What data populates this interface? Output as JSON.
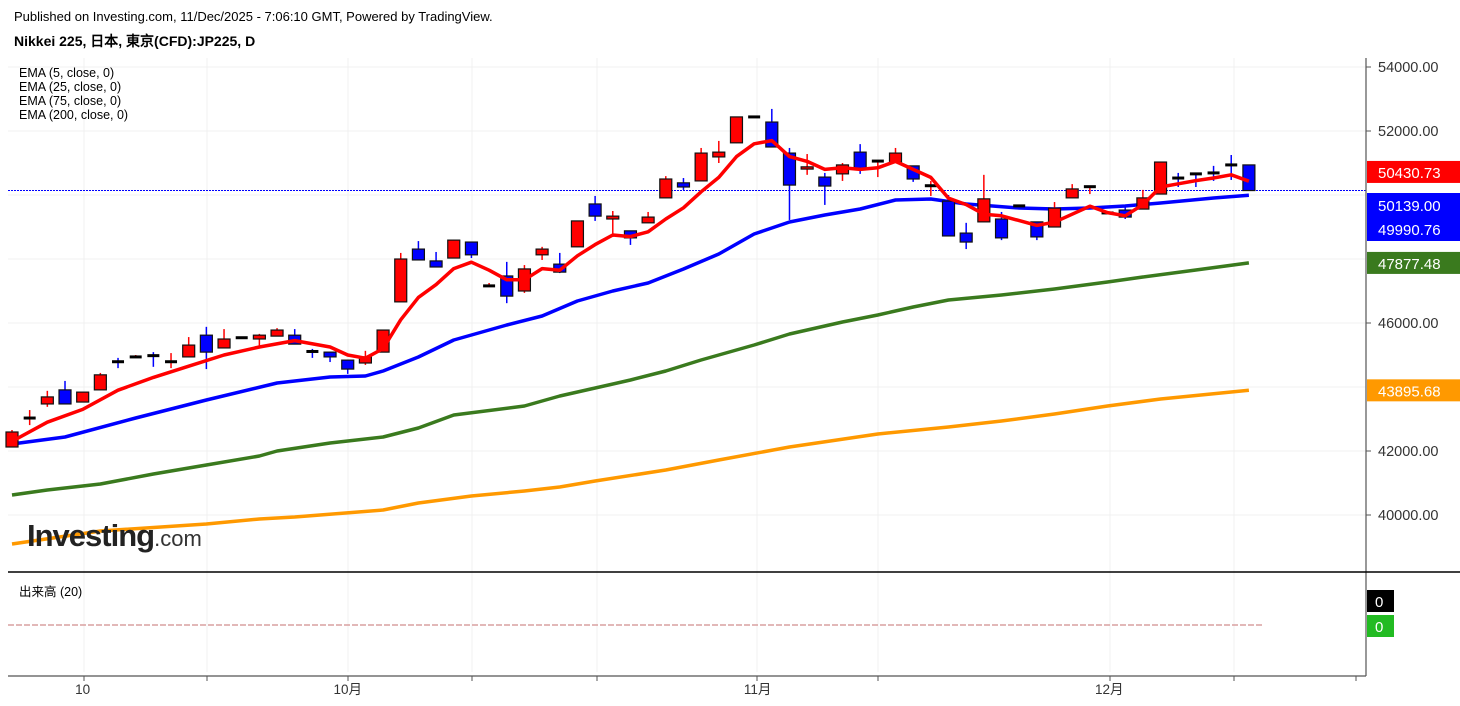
{
  "header": {
    "published": "Published on Investing.com, 11/Dec/2025 - 7:06:10 GMT, Powered by TradingView.",
    "symbol": "Nikkei 225, 日本, 東京(CFD):JP225, D"
  },
  "watermark": {
    "brand": "Investing",
    "suffix": ".com"
  },
  "volume_pane": {
    "label": "出来高 (20)",
    "values": [
      "0",
      "0"
    ],
    "colors": [
      "#000000",
      "#22bb22"
    ]
  },
  "chart_data": {
    "type": "candlestick",
    "title": "Nikkei 225, 日本, 東京(CFD):JP225, D",
    "ylim": [
      38200,
      54400
    ],
    "yticks": [
      54000,
      52000,
      46000,
      42000,
      40000
    ],
    "ytick_labels": [
      "54000.00",
      "52000.00",
      "46000.00",
      "42000.00",
      "40000.00"
    ],
    "xtick_labels": [
      {
        "label": "10",
        "index": 4
      },
      {
        "label": "10月",
        "index": 19
      },
      {
        "label": "11月",
        "index": 42.2
      },
      {
        "label": "12月",
        "index": 62.1
      }
    ],
    "grid": true,
    "colors": {
      "up": "#ff0000",
      "down": "#0000ff"
    },
    "last_price": {
      "value": 50139.0,
      "label": "50139.00",
      "color": "#0000ff"
    },
    "candles": [
      [
        42125,
        42656,
        42125,
        42594
      ],
      [
        43000,
        43280,
        42810,
        43030
      ],
      [
        43470,
        43880,
        43380,
        43690
      ],
      [
        43910,
        44190,
        43470,
        43470
      ],
      [
        43530,
        43850,
        43530,
        43840
      ],
      [
        43910,
        44440,
        43900,
        44380
      ],
      [
        44790,
        44910,
        44590,
        44770
      ],
      [
        44930,
        45000,
        44920,
        44940
      ],
      [
        44980,
        45090,
        44630,
        44960
      ],
      [
        44780,
        45060,
        44590,
        44790
      ],
      [
        44940,
        45560,
        44930,
        45310
      ],
      [
        45620,
        45880,
        44560,
        45090
      ],
      [
        45220,
        45810,
        45210,
        45500
      ],
      [
        45530,
        45560,
        45500,
        45540
      ],
      [
        45500,
        45660,
        45250,
        45620
      ],
      [
        45590,
        45840,
        45590,
        45780
      ],
      [
        45620,
        45810,
        45340,
        45340
      ],
      [
        45110,
        45190,
        44910,
        45090
      ],
      [
        45090,
        45100,
        44780,
        44940
      ],
      [
        44840,
        44850,
        44410,
        44560
      ],
      [
        44750,
        45130,
        44690,
        44940
      ],
      [
        45090,
        45780,
        45090,
        45780
      ],
      [
        46660,
        48190,
        46650,
        48000
      ],
      [
        48310,
        48560,
        47970,
        47970
      ],
      [
        47940,
        48220,
        47750,
        47750
      ],
      [
        48030,
        48600,
        48030,
        48590
      ],
      [
        48530,
        48540,
        48030,
        48130
      ],
      [
        47150,
        47250,
        47140,
        47160
      ],
      [
        47470,
        47910,
        46620,
        46840
      ],
      [
        47000,
        47810,
        46940,
        47690
      ],
      [
        48130,
        48380,
        47970,
        48310
      ],
      [
        47840,
        48190,
        47560,
        47590
      ],
      [
        48380,
        49190,
        48370,
        49190
      ],
      [
        49720,
        49970,
        49190,
        49340
      ],
      [
        49250,
        49500,
        48690,
        49340
      ],
      [
        48880,
        48890,
        48440,
        48660
      ],
      [
        49130,
        49470,
        49120,
        49310
      ],
      [
        49910,
        50590,
        49900,
        50500
      ],
      [
        50380,
        50530,
        50160,
        50250
      ],
      [
        50440,
        51470,
        50430,
        51310
      ],
      [
        51190,
        51690,
        51000,
        51340
      ],
      [
        51630,
        52440,
        51620,
        52440
      ],
      [
        52440,
        52450,
        52430,
        52440
      ],
      [
        52280,
        52690,
        51500,
        51500
      ],
      [
        51310,
        51470,
        49220,
        50310
      ],
      [
        50810,
        51280,
        50630,
        50880
      ],
      [
        50560,
        50690,
        49690,
        50280
      ],
      [
        50660,
        51000,
        50440,
        50940
      ],
      [
        51340,
        51590,
        50660,
        50840
      ],
      [
        51050,
        51070,
        50560,
        51060
      ],
      [
        51030,
        51470,
        51020,
        51310
      ],
      [
        50910,
        50920,
        50410,
        50500
      ],
      [
        50280,
        50440,
        49970,
        50290
      ],
      [
        49810,
        50000,
        48720,
        48720
      ],
      [
        48810,
        49130,
        48310,
        48530
      ],
      [
        49160,
        50630,
        49150,
        49880
      ],
      [
        49250,
        49470,
        48590,
        48660
      ],
      [
        49650,
        49670,
        49640,
        49660
      ],
      [
        49160,
        49170,
        48590,
        48690
      ],
      [
        49000,
        49780,
        48990,
        49590
      ],
      [
        49910,
        50340,
        49900,
        50190
      ],
      [
        50250,
        50260,
        50030,
        50260
      ],
      [
        49440,
        49450,
        49430,
        49440
      ],
      [
        49530,
        49660,
        49250,
        49310
      ],
      [
        49560,
        50160,
        49560,
        49910
      ],
      [
        50030,
        51040,
        50020,
        51030
      ],
      [
        50530,
        50690,
        50250,
        50520
      ],
      [
        50660,
        50670,
        50250,
        50650
      ],
      [
        50690,
        50910,
        50440,
        50680
      ],
      [
        50940,
        51250,
        50470,
        50930
      ],
      [
        50940,
        50950,
        50139,
        50139
      ]
    ],
    "candle_fields": [
      "open",
      "high",
      "low",
      "close"
    ],
    "series": [
      {
        "name": "EMA (5, close, 0)",
        "color": "#ff0000",
        "last": "50430.73",
        "points": [
          [
            0,
            42300
          ],
          [
            2,
            42900
          ],
          [
            4,
            43300
          ],
          [
            6,
            43900
          ],
          [
            8,
            44300
          ],
          [
            10,
            44650
          ],
          [
            12,
            45000
          ],
          [
            14,
            45250
          ],
          [
            16,
            45450
          ],
          [
            18,
            45250
          ],
          [
            19,
            45000
          ],
          [
            20,
            44900
          ],
          [
            21,
            45200
          ],
          [
            22,
            46100
          ],
          [
            23,
            46800
          ],
          [
            24,
            47200
          ],
          [
            25,
            47700
          ],
          [
            26,
            47900
          ],
          [
            27,
            47650
          ],
          [
            28,
            47350
          ],
          [
            29,
            47350
          ],
          [
            30,
            47700
          ],
          [
            31,
            47650
          ],
          [
            32,
            48100
          ],
          [
            33,
            48450
          ],
          [
            34,
            48750
          ],
          [
            35,
            48700
          ],
          [
            36,
            48850
          ],
          [
            37,
            49250
          ],
          [
            38,
            49600
          ],
          [
            39,
            50100
          ],
          [
            40,
            50550
          ],
          [
            41,
            51200
          ],
          [
            42,
            51600
          ],
          [
            43,
            51700
          ],
          [
            44,
            51200
          ],
          [
            45,
            51050
          ],
          [
            46,
            50800
          ],
          [
            47,
            50850
          ],
          [
            48,
            50800
          ],
          [
            49,
            50850
          ],
          [
            50,
            51050
          ],
          [
            51,
            50800
          ],
          [
            52,
            50550
          ],
          [
            53,
            49900
          ],
          [
            54,
            49700
          ],
          [
            55,
            49400
          ],
          [
            56,
            49350
          ],
          [
            57,
            49200
          ],
          [
            58,
            49050
          ],
          [
            59,
            49150
          ],
          [
            60,
            49400
          ],
          [
            61,
            49650
          ],
          [
            62,
            49450
          ],
          [
            63,
            49350
          ],
          [
            64,
            49700
          ],
          [
            65,
            50250
          ],
          [
            66,
            50350
          ],
          [
            67,
            50450
          ],
          [
            68,
            50530
          ],
          [
            69,
            50630
          ],
          [
            70,
            50430.73
          ]
        ]
      },
      {
        "name": "EMA (25, close, 0)",
        "color": "#0000ff",
        "last": "49990.76",
        "points": [
          [
            0,
            42219
          ],
          [
            3,
            42438
          ],
          [
            7,
            43031
          ],
          [
            11,
            43594
          ],
          [
            15,
            44125
          ],
          [
            18,
            44313
          ],
          [
            20,
            44344
          ],
          [
            21,
            44500
          ],
          [
            23,
            44938
          ],
          [
            25,
            45469
          ],
          [
            28,
            45938
          ],
          [
            30,
            46219
          ],
          [
            32,
            46688
          ],
          [
            34,
            47000
          ],
          [
            36,
            47250
          ],
          [
            38,
            47688
          ],
          [
            40,
            48156
          ],
          [
            42,
            48781
          ],
          [
            44,
            49156
          ],
          [
            46,
            49375
          ],
          [
            48,
            49563
          ],
          [
            50,
            49844
          ],
          [
            52,
            49875
          ],
          [
            54,
            49719
          ],
          [
            57,
            49594
          ],
          [
            59,
            49563
          ],
          [
            61,
            49594
          ],
          [
            63,
            49656
          ],
          [
            65,
            49750
          ],
          [
            68,
            49906
          ],
          [
            70,
            49990.76
          ]
        ]
      },
      {
        "name": "EMA (75, close, 0)",
        "color": "#3a7a1e",
        "last": "47877.48",
        "points": [
          [
            0,
            40625
          ],
          [
            2,
            40781
          ],
          [
            5,
            40969
          ],
          [
            8,
            41281
          ],
          [
            11,
            41563
          ],
          [
            14,
            41844
          ],
          [
            15,
            42000
          ],
          [
            18,
            42250
          ],
          [
            21,
            42438
          ],
          [
            23,
            42719
          ],
          [
            25,
            43125
          ],
          [
            29,
            43406
          ],
          [
            31,
            43719
          ],
          [
            35,
            44219
          ],
          [
            37,
            44500
          ],
          [
            39,
            44844
          ],
          [
            42,
            45313
          ],
          [
            44,
            45656
          ],
          [
            47,
            46031
          ],
          [
            49,
            46250
          ],
          [
            51,
            46500
          ],
          [
            53,
            46719
          ],
          [
            56,
            46875
          ],
          [
            59,
            47063
          ],
          [
            62,
            47281
          ],
          [
            64,
            47438
          ],
          [
            67,
            47656
          ],
          [
            70,
            47877.48
          ]
        ]
      },
      {
        "name": "EMA (200, close, 0)",
        "color": "#ff9900",
        "last": "43895.68",
        "points": [
          [
            0,
            39094
          ],
          [
            5,
            39500
          ],
          [
            11,
            39719
          ],
          [
            14,
            39875
          ],
          [
            16,
            39938
          ],
          [
            21,
            40156
          ],
          [
            23,
            40375
          ],
          [
            26,
            40594
          ],
          [
            29,
            40750
          ],
          [
            31,
            40875
          ],
          [
            33,
            41063
          ],
          [
            37,
            41406
          ],
          [
            40,
            41719
          ],
          [
            44,
            42125
          ],
          [
            49,
            42531
          ],
          [
            53,
            42750
          ],
          [
            56,
            42938
          ],
          [
            59,
            43156
          ],
          [
            62,
            43406
          ],
          [
            65,
            43625
          ],
          [
            70,
            43895.68
          ]
        ]
      }
    ]
  }
}
